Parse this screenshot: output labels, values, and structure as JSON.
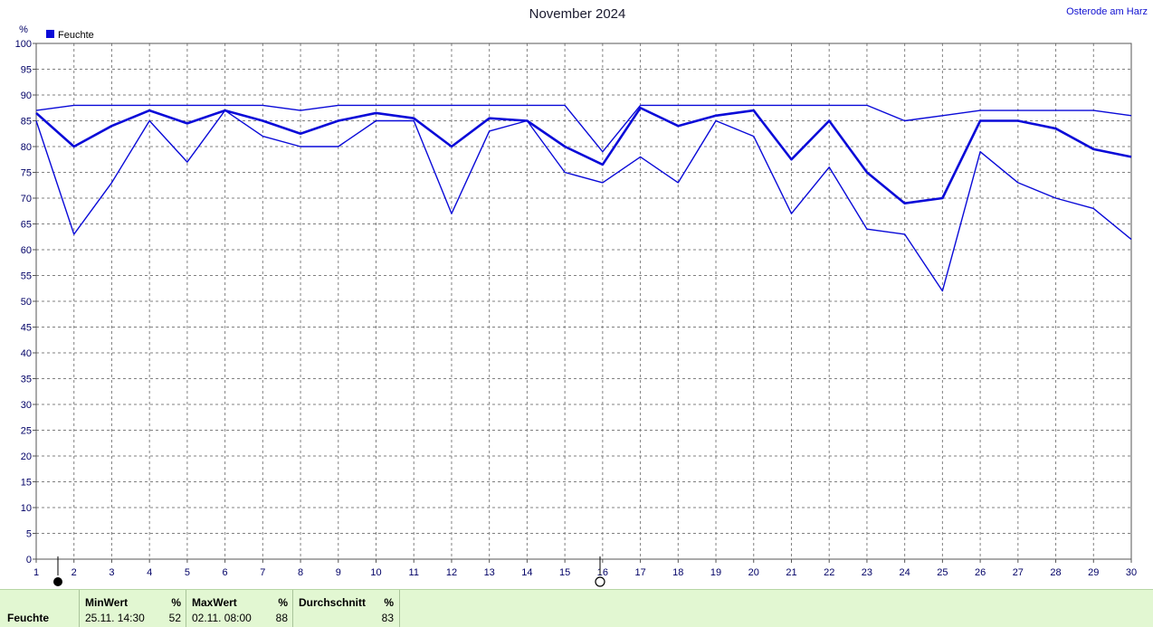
{
  "header": {
    "title": "November 2024",
    "location": "Osterode am Harz"
  },
  "chart_data": {
    "type": "line",
    "title": "November 2024",
    "ylabel": "%",
    "xlabel": "",
    "ylim": [
      0,
      100
    ],
    "xlim": [
      1,
      30
    ],
    "yticks": [
      0,
      5,
      10,
      15,
      20,
      25,
      30,
      35,
      40,
      45,
      50,
      55,
      60,
      65,
      70,
      75,
      80,
      85,
      90,
      95,
      100
    ],
    "xticks": [
      1,
      2,
      3,
      4,
      5,
      6,
      7,
      8,
      9,
      10,
      11,
      12,
      13,
      14,
      15,
      16,
      17,
      18,
      19,
      20,
      21,
      22,
      23,
      24,
      25,
      26,
      27,
      28,
      29,
      30
    ],
    "grid": true,
    "legend": {
      "position": "top-left",
      "entries": [
        "Feuchte"
      ]
    },
    "color": "#0a0ad8",
    "x": [
      1,
      2,
      3,
      4,
      5,
      6,
      7,
      8,
      9,
      10,
      11,
      12,
      13,
      14,
      15,
      16,
      17,
      18,
      19,
      20,
      21,
      22,
      23,
      24,
      25,
      26,
      27,
      28,
      29,
      30
    ],
    "series": [
      {
        "values": [
          87,
          88,
          88,
          88,
          88,
          88,
          88,
          87,
          88,
          88,
          88,
          88,
          88,
          88,
          88,
          79,
          88,
          88,
          88,
          88,
          88,
          88,
          88,
          85,
          86,
          87,
          87,
          87,
          87,
          86
        ]
      },
      {
        "values": [
          86.5,
          80,
          84,
          87,
          84.5,
          87,
          85,
          82.5,
          85,
          86.5,
          85.5,
          80,
          85.5,
          85,
          80,
          76.5,
          87.5,
          84,
          86,
          87,
          77.5,
          85,
          75,
          69,
          70,
          85,
          85,
          83.5,
          79.5,
          78
        ]
      },
      {
        "values": [
          85,
          63,
          73,
          85,
          77,
          87,
          82,
          80,
          80,
          85,
          85,
          67,
          83,
          85,
          75,
          73,
          78,
          73,
          85,
          82,
          67,
          76,
          64,
          63,
          52,
          79,
          73,
          70,
          68,
          62
        ]
      }
    ]
  },
  "stats": {
    "label": "Feuchte",
    "min": {
      "header": "MinWert",
      "unit": "%",
      "when": "25.11.  14:30",
      "value": "52"
    },
    "max": {
      "header": "MaxWert",
      "unit": "%",
      "when": "02.11.  08:00",
      "value": "88"
    },
    "avg": {
      "header": "Durchschnitt",
      "unit": "%",
      "value": "83"
    }
  }
}
